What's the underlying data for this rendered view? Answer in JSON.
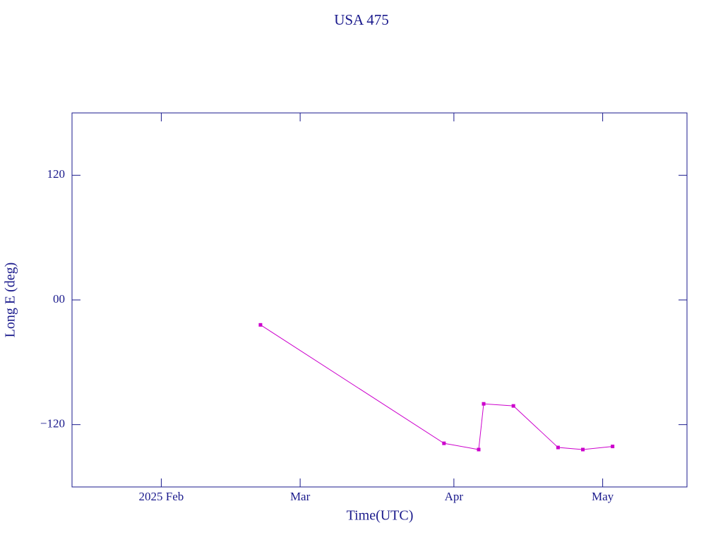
{
  "chart_data": {
    "type": "line",
    "title": "USA 475",
    "x_label": "Time(UTC)",
    "y_label": "Long E (deg)",
    "x": [
      "2025-02-21",
      "2025-03-30",
      "2025-04-06",
      "2025-04-07",
      "2025-04-13",
      "2025-04-22",
      "2025-04-27",
      "2025-05-03"
    ],
    "series": [
      {
        "color": "#cc00cc",
        "values": [
          -24,
          -138,
          -144,
          -100,
          -102,
          -142,
          -144,
          -141
        ]
      }
    ],
    "xlim": [
      "2025-01-14",
      "2025-05-18"
    ],
    "xticks": [
      {
        "value": "2025-02-01",
        "label": "2025 Feb"
      },
      {
        "value": "2025-03-01",
        "label": "Mar"
      },
      {
        "value": "2025-04-01",
        "label": "Apr"
      },
      {
        "value": "2025-05-01",
        "label": "May"
      }
    ],
    "ylim": [
      -180,
      180
    ],
    "yticks": [
      {
        "value": -120,
        "label": "−120"
      },
      {
        "value": 0,
        "label": "00"
      },
      {
        "value": 120,
        "label": "120"
      }
    ],
    "axis_color": "#1a1a8c"
  }
}
